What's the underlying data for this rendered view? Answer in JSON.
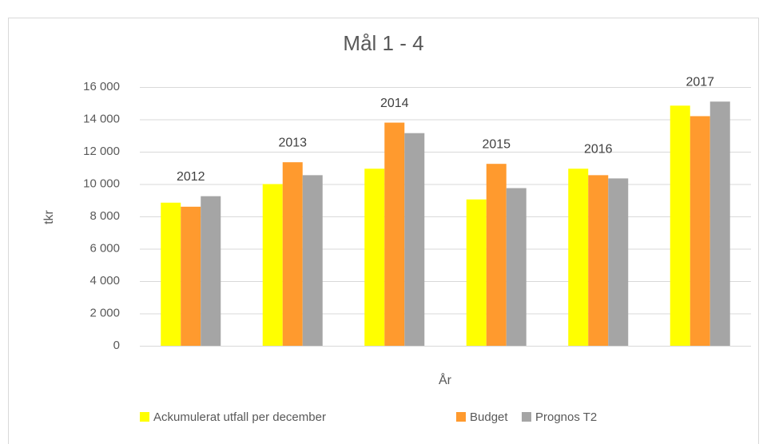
{
  "chart_data": {
    "type": "bar",
    "title": "Mål 1 - 4",
    "y_label": "tkr",
    "x_label": "År",
    "categories": [
      "2012",
      "2013",
      "2014",
      "2015",
      "2016",
      "2017"
    ],
    "series": [
      {
        "name": "Ackumulerat utfall per december",
        "color": "#ffff00",
        "values": [
          8850,
          10000,
          10950,
          9050,
          10950,
          14850
        ]
      },
      {
        "name": "Budget",
        "color": "#ff9a2e",
        "values": [
          8600,
          11350,
          13800,
          11250,
          10550,
          14200
        ]
      },
      {
        "name": "Prognos T2",
        "color": "#a5a5a5",
        "values": [
          9250,
          10550,
          13150,
          9750,
          10350,
          15100
        ]
      }
    ],
    "ylim": [
      0,
      16000
    ],
    "yticks": [
      0,
      {
        "value": 2000,
        "label": "2 000"
      },
      {
        "value": 4000,
        "label": "4 000"
      },
      {
        "value": 6000,
        "label": "6 000"
      },
      {
        "value": 8000,
        "label": "8 000"
      },
      {
        "value": 10000,
        "label": "10 000"
      },
      {
        "value": 12000,
        "label": "12 000"
      },
      {
        "value": 14000,
        "label": "14 000"
      },
      {
        "value": 16000,
        "label": "16 000"
      }
    ],
    "grid": true,
    "legend": "bottom"
  }
}
